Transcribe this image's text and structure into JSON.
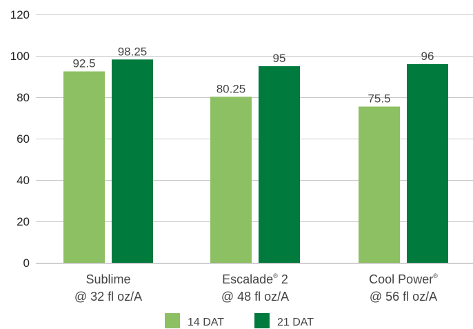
{
  "chart_data": {
    "type": "bar",
    "title": "",
    "xlabel": "",
    "ylabel": "",
    "ylim": [
      0,
      120
    ],
    "yticks": [
      0,
      20,
      40,
      60,
      80,
      100,
      120
    ],
    "grid": true,
    "legend_position": "bottom",
    "categories": [
      {
        "line1": "Sublime",
        "line1_sup": "",
        "line1_suffix": "",
        "line2": "@ 32 fl oz/A"
      },
      {
        "line1": "Escalade",
        "line1_sup": "®",
        "line1_suffix": " 2",
        "line2": "@ 48 fl oz/A"
      },
      {
        "line1": "Cool Power",
        "line1_sup": "®",
        "line1_suffix": "",
        "line2": "@ 56 fl oz/A"
      }
    ],
    "series": [
      {
        "name": "14 DAT",
        "color": "#8dc063",
        "values": [
          92.5,
          80.25,
          75.5
        ],
        "labels": [
          "92.5",
          "80.25",
          "75.5"
        ]
      },
      {
        "name": "21 DAT",
        "color": "#007a3d",
        "values": [
          98.25,
          95,
          96
        ],
        "labels": [
          "98.25",
          "95",
          "96"
        ]
      }
    ]
  }
}
